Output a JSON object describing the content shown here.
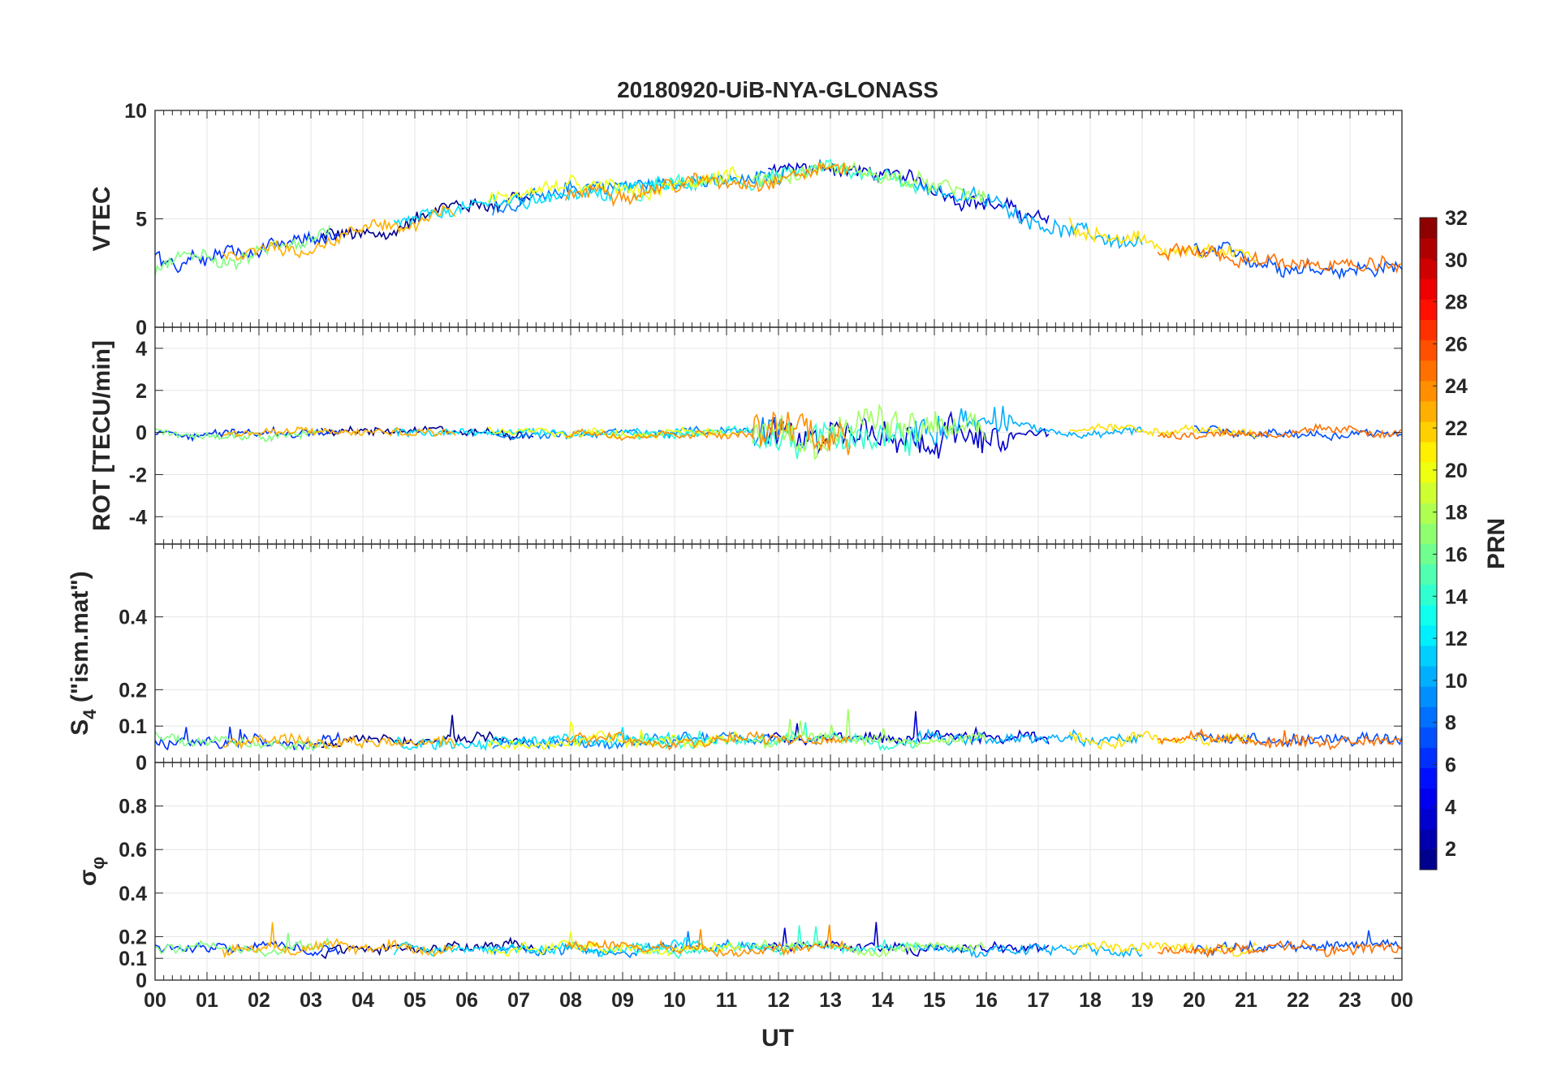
{
  "chart_data": {
    "type": "line",
    "title": "20180920-UiB-NYA-GLONASS",
    "xlabel": "UT",
    "x_ticks": [
      "00",
      "01",
      "02",
      "03",
      "04",
      "05",
      "06",
      "07",
      "08",
      "09",
      "10",
      "11",
      "12",
      "13",
      "14",
      "15",
      "16",
      "17",
      "18",
      "19",
      "20",
      "21",
      "22",
      "23",
      "00"
    ],
    "x_range_hours": [
      0,
      24
    ],
    "grid": true,
    "panels": [
      {
        "id": "vtec",
        "ylabel": "VTEC",
        "ylim": [
          0,
          10
        ],
        "yticks": [
          "0",
          "5",
          "10"
        ],
        "ytick_values": [
          0,
          5,
          10
        ],
        "profile_hours": [
          0,
          2,
          4,
          6,
          8,
          10,
          12,
          13,
          14,
          16,
          18,
          20,
          22,
          24
        ],
        "profile_values": [
          3.0,
          3.5,
          4.3,
          5.5,
          6.3,
          6.6,
          7.0,
          7.4,
          7.0,
          5.8,
          4.2,
          3.4,
          2.9,
          2.7
        ],
        "noise": 0.45
      },
      {
        "id": "rot",
        "ylabel": "ROT [TECU/min]",
        "ylim": [
          -5.3,
          5
        ],
        "yticks": [
          "-4",
          "-2",
          "0",
          "2",
          "4"
        ],
        "ytick_values": [
          -4,
          -2,
          0,
          2,
          4
        ],
        "profile_hours": [
          0,
          24
        ],
        "profile_values": [
          0,
          0
        ],
        "noise": 0.25,
        "active_hours": [
          11.5,
          16.5
        ],
        "active_noise": 1.0
      },
      {
        "id": "s4",
        "ylabel": "S4 (\"ism.mat\")",
        "ylabel_main": "S",
        "ylabel_sub": "4",
        "ylabel_rest": " (\"ism.mat\")",
        "ylim": [
          0,
          0.6
        ],
        "yticks": [
          "0",
          "0.1",
          "0.2",
          "0.4"
        ],
        "ytick_values": [
          0,
          0.1,
          0.2,
          0.4
        ],
        "profile_hours": [
          0,
          24
        ],
        "profile_values": [
          0.06,
          0.06
        ],
        "noise": 0.02
      },
      {
        "id": "sigma_phi",
        "ylabel": "σφ",
        "ylabel_main": "σ",
        "ylabel_sub": "φ",
        "ylim": [
          0,
          1
        ],
        "yticks": [
          "0",
          "0.1",
          "0.2",
          "0.4",
          "0.6",
          "0.8"
        ],
        "ytick_values": [
          0,
          0.1,
          0.2,
          0.4,
          0.6,
          0.8
        ],
        "profile_hours": [
          0,
          24
        ],
        "profile_values": [
          0.15,
          0.15
        ],
        "noise": 0.03
      }
    ],
    "series": [
      {
        "name": "PRN 2",
        "prn": 2,
        "color": "#00008f",
        "start": 3.2,
        "end": 7.3
      },
      {
        "name": "PRN 3",
        "prn": 3,
        "color": "#0000d0",
        "start": 11.8,
        "end": 17.2
      },
      {
        "name": "PRN 5",
        "prn": 5,
        "color": "#0030ff",
        "start": 0.0,
        "end": 3.6
      },
      {
        "name": "PRN 6",
        "prn": 6,
        "color": "#0050ff",
        "start": 20.0,
        "end": 24.0
      },
      {
        "name": "PRN 8",
        "prn": 8,
        "color": "#0080ff",
        "start": 6.5,
        "end": 12.1
      },
      {
        "name": "PRN 10",
        "prn": 10,
        "color": "#00b0ff",
        "start": 14.6,
        "end": 19.0
      },
      {
        "name": "PRN 12",
        "prn": 12,
        "color": "#00e0ff",
        "start": 4.6,
        "end": 10.5
      },
      {
        "name": "PRN 14",
        "prn": 14,
        "color": "#30ffcf",
        "start": 9.2,
        "end": 14.7
      },
      {
        "name": "PRN 16",
        "prn": 16,
        "color": "#7fff7f",
        "start": 0.0,
        "end": 3.4
      },
      {
        "name": "PRN 17",
        "prn": 17,
        "color": "#a0ff60",
        "start": 11.5,
        "end": 16.0
      },
      {
        "name": "PRN 19",
        "prn": 19,
        "color": "#efff10",
        "start": 6.4,
        "end": 11.3
      },
      {
        "name": "PRN 20",
        "prn": 20,
        "color": "#ffe000",
        "start": 17.6,
        "end": 21.2
      },
      {
        "name": "PRN 22",
        "prn": 22,
        "color": "#ffb000",
        "start": 1.3,
        "end": 5.8
      },
      {
        "name": "PRN 23",
        "prn": 23,
        "color": "#ff9000",
        "start": 7.9,
        "end": 13.4
      },
      {
        "name": "PRN 24",
        "prn": 24,
        "color": "#ff7000",
        "start": 19.3,
        "end": 24.0
      }
    ],
    "colorbar": {
      "label": "PRN",
      "range": [
        1,
        32
      ],
      "ticks": [
        "2",
        "4",
        "6",
        "8",
        "10",
        "12",
        "14",
        "16",
        "18",
        "20",
        "22",
        "24",
        "26",
        "28",
        "30",
        "32"
      ],
      "tick_values": [
        2,
        4,
        6,
        8,
        10,
        12,
        14,
        16,
        18,
        20,
        22,
        24,
        26,
        28,
        30,
        32
      ],
      "colormap": "jet"
    }
  }
}
